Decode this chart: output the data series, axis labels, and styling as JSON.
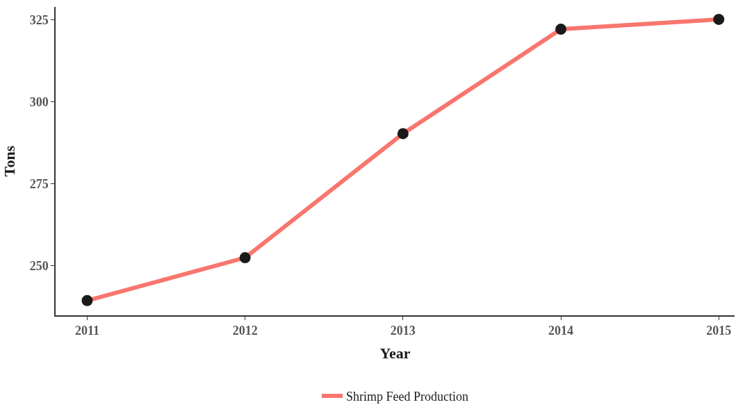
{
  "chart_data": {
    "type": "line",
    "xlabel": "Year",
    "ylabel": "Tons",
    "x": [
      2011,
      2012,
      2013,
      2014,
      2015
    ],
    "series": [
      {
        "name": "Shrimp Feed Production",
        "color": "#f8766d",
        "values": [
          239.3,
          252.4,
          290.3,
          322.2,
          325.2
        ]
      },
      {
        "type": "scatter",
        "color": "#1a1a1a",
        "marker": "circle",
        "values": [
          239.3,
          252.4,
          290.3,
          322.2,
          325.2
        ]
      }
    ],
    "xlim": [
      2010.8,
      2015.1
    ],
    "xticks": [
      2011,
      2012,
      2013,
      2014,
      2015
    ],
    "ylim": [
      234.8,
      329
    ],
    "yticks": [
      250,
      275,
      300,
      325
    ],
    "legend": "bottom"
  }
}
